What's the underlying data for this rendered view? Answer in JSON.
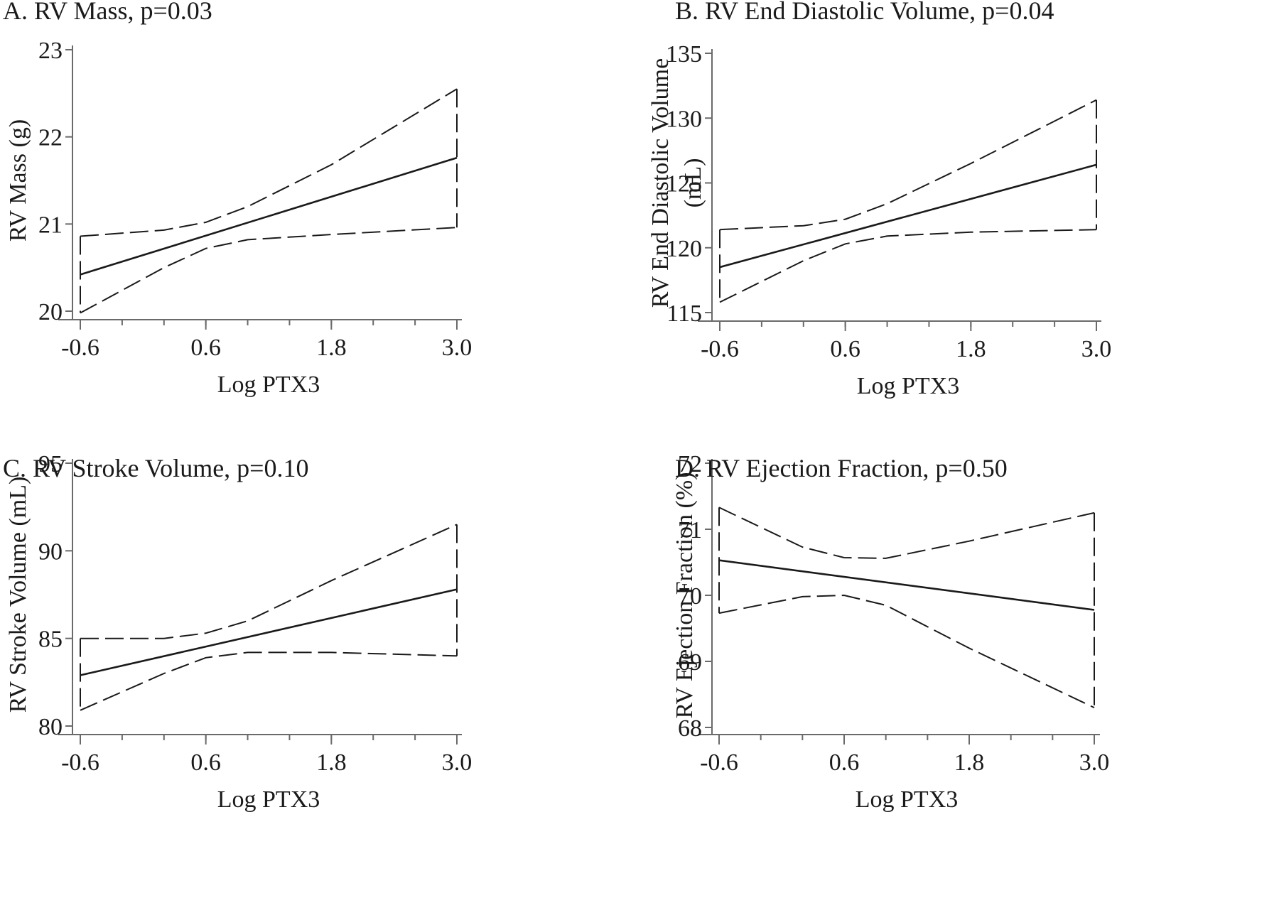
{
  "chart_data": [
    {
      "type": "line",
      "title": "A. RV Mass, p=0.03",
      "xlabel": "Log PTX3",
      "ylabel": "RV Mass (g)",
      "xlim": [
        -0.6,
        3.0
      ],
      "ylim": [
        20,
        23
      ],
      "xticks": [
        "-0.6",
        "0.6",
        "1.8",
        "3.0"
      ],
      "yticks": [
        "20",
        "21",
        "22",
        "23"
      ],
      "series": [
        {
          "role": "fit",
          "x": [
            -0.6,
            3.0
          ],
          "y": [
            20.42,
            21.76
          ]
        },
        {
          "role": "upper",
          "x": [
            -0.6,
            0.2,
            0.6,
            1.0,
            1.8,
            3.0
          ],
          "y": [
            20.86,
            20.93,
            21.02,
            21.2,
            21.68,
            22.55
          ]
        },
        {
          "role": "lower",
          "x": [
            -0.6,
            0.2,
            0.6,
            1.0,
            1.8,
            3.0
          ],
          "y": [
            19.98,
            20.5,
            20.72,
            20.82,
            20.88,
            20.96
          ]
        }
      ]
    },
    {
      "type": "line",
      "title": "B. RV End Diastolic Volume, p=0.04",
      "xlabel": "Log PTX3",
      "ylabel": [
        "RV End Diastolic Volume",
        "(mL)"
      ],
      "xlim": [
        -0.6,
        3.0
      ],
      "ylim": [
        115,
        135
      ],
      "xticks": [
        "-0.6",
        "0.6",
        "1.8",
        "3.0"
      ],
      "yticks": [
        "115",
        "120",
        "125",
        "130",
        "135"
      ],
      "series": [
        {
          "role": "fit",
          "x": [
            -0.6,
            3.0
          ],
          "y": [
            118.5,
            126.4
          ]
        },
        {
          "role": "upper",
          "x": [
            -0.6,
            0.2,
            0.6,
            1.0,
            1.8,
            3.0
          ],
          "y": [
            121.4,
            121.7,
            122.2,
            123.4,
            126.5,
            131.4
          ]
        },
        {
          "role": "lower",
          "x": [
            -0.6,
            0.2,
            0.6,
            1.0,
            1.8,
            3.0
          ],
          "y": [
            115.8,
            119.0,
            120.3,
            120.9,
            121.2,
            121.4
          ]
        }
      ]
    },
    {
      "type": "line",
      "title": "C. RV Stroke Volume, p=0.10",
      "xlabel": "Log PTX3",
      "ylabel": "RV Stroke Volume (mL)",
      "xlim": [
        -0.6,
        3.0
      ],
      "ylim": [
        80,
        95
      ],
      "xticks": [
        "-0.6",
        "0.6",
        "1.8",
        "3.0"
      ],
      "yticks": [
        "80",
        "85",
        "90",
        "95"
      ],
      "series": [
        {
          "role": "fit",
          "x": [
            -0.6,
            3.0
          ],
          "y": [
            82.9,
            87.8
          ]
        },
        {
          "role": "upper",
          "x": [
            -0.6,
            0.2,
            0.6,
            1.0,
            1.8,
            3.0
          ],
          "y": [
            85.0,
            85.0,
            85.3,
            86.0,
            88.3,
            91.5
          ]
        },
        {
          "role": "lower",
          "x": [
            -0.6,
            0.2,
            0.6,
            1.0,
            1.8,
            3.0
          ],
          "y": [
            80.9,
            83.0,
            83.9,
            84.2,
            84.2,
            84.0
          ]
        }
      ]
    },
    {
      "type": "line",
      "title": "D. RV Ejection Fraction, p=0.50",
      "xlabel": "Log PTX3",
      "ylabel": "RV Ejection Fraction (%)",
      "xlim": [
        -0.6,
        3.0
      ],
      "ylim": [
        68,
        72
      ],
      "xticks": [
        "-0.6",
        "0.6",
        "1.8",
        "3.0"
      ],
      "yticks": [
        "68",
        "69",
        "70",
        "71",
        "72"
      ],
      "series": [
        {
          "role": "fit",
          "x": [
            -0.6,
            3.0
          ],
          "y": [
            70.53,
            69.78
          ]
        },
        {
          "role": "upper",
          "x": [
            -0.6,
            0.2,
            0.6,
            1.0,
            1.8,
            3.0
          ],
          "y": [
            71.33,
            70.73,
            70.57,
            70.56,
            70.82,
            71.25
          ]
        },
        {
          "role": "lower",
          "x": [
            -0.6,
            0.2,
            0.6,
            1.0,
            1.8,
            3.0
          ],
          "y": [
            69.73,
            69.98,
            70.0,
            69.85,
            69.2,
            68.3
          ]
        }
      ]
    }
  ]
}
